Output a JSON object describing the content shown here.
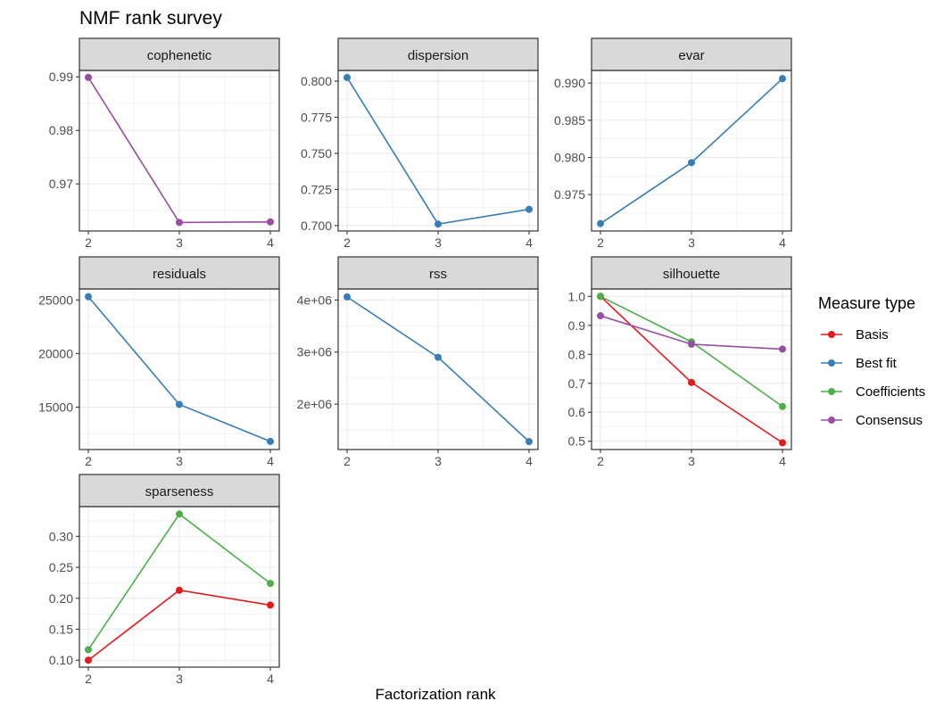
{
  "colors": {
    "Basis": "#E41A1C",
    "Best fit": "#377EB8",
    "Coefficients": "#4DAF4A",
    "Consensus": "#984EA3",
    "panel_border": "#333333",
    "strip_fill": "#D9D9D9",
    "grid": "#EBEBEB",
    "text": "#4D4D4D"
  },
  "chart_data": {
    "type": "line",
    "title": "NMF rank survey",
    "xlabel": "Factorization rank",
    "ylabel": "",
    "legend_title": "Measure type",
    "legend_position": "right",
    "grid": true,
    "legend": [
      "Basis",
      "Best fit",
      "Coefficients",
      "Consensus"
    ],
    "x": [
      2,
      3,
      4
    ],
    "x_ticks": [
      "2",
      "3",
      "4"
    ],
    "panels": [
      {
        "name": "cophenetic",
        "ylim": [
          0.9612,
          0.9912
        ],
        "y_ticks": [
          0.97,
          0.98,
          0.99
        ],
        "y_tick_labels": [
          "0.97",
          "0.98",
          "0.99"
        ],
        "series": [
          {
            "name": "Consensus",
            "values": [
              0.9899,
              0.9628,
              0.9629
            ]
          }
        ]
      },
      {
        "name": "dispersion",
        "ylim": [
          0.6962,
          0.8074
        ],
        "y_ticks": [
          0.7,
          0.725,
          0.75,
          0.775,
          0.8
        ],
        "y_tick_labels": [
          "0.700",
          "0.725",
          "0.750",
          "0.775",
          "0.800"
        ],
        "series": [
          {
            "name": "Best fit",
            "values": [
              0.8025,
              0.701,
              0.7112
            ]
          }
        ]
      },
      {
        "name": "evar",
        "ylim": [
          0.9701,
          0.9917
        ],
        "y_ticks": [
          0.975,
          0.98,
          0.985,
          0.99
        ],
        "y_tick_labels": [
          "0.975",
          "0.980",
          "0.985",
          "0.990"
        ],
        "series": [
          {
            "name": "Best fit",
            "values": [
              0.9711,
              0.9793,
              0.9906
            ]
          }
        ]
      },
      {
        "name": "residuals",
        "ylim": [
          11045,
          26020
        ],
        "y_ticks": [
          15000,
          20000,
          25000
        ],
        "y_tick_labels": [
          "15000",
          "20000",
          "25000"
        ],
        "series": [
          {
            "name": "Best fit",
            "values": [
              25300,
              15250,
              11800
            ]
          }
        ]
      },
      {
        "name": "rss",
        "ylim": [
          1128000,
          4212000
        ],
        "y_ticks": [
          2000000,
          3000000,
          4000000
        ],
        "y_tick_labels": [
          "2e+06",
          "3e+06",
          "4e+06"
        ],
        "series": [
          {
            "name": "Best fit",
            "values": [
              4060000,
              2900000,
              1280000
            ]
          }
        ]
      },
      {
        "name": "silhouette",
        "ylim": [
          0.4715,
          1.0255
        ],
        "y_ticks": [
          0.5,
          0.6,
          0.7,
          0.8,
          0.9,
          1.0
        ],
        "y_tick_labels": [
          "0.5",
          "0.6",
          "0.7",
          "0.8",
          "0.9",
          "1.0"
        ],
        "series": [
          {
            "name": "Basis",
            "values": [
              1.0,
              0.703,
              0.495
            ]
          },
          {
            "name": "Coefficients",
            "values": [
              1.0,
              0.843,
              0.62
            ]
          },
          {
            "name": "Consensus",
            "values": [
              0.933,
              0.835,
              0.818
            ]
          }
        ]
      },
      {
        "name": "sparseness",
        "ylim": [
          0.0888,
          0.348
        ],
        "y_ticks": [
          0.1,
          0.15,
          0.2,
          0.25,
          0.3
        ],
        "y_tick_labels": [
          "0.10",
          "0.15",
          "0.20",
          "0.25",
          "0.30"
        ],
        "series": [
          {
            "name": "Basis",
            "values": [
              0.1,
              0.213,
              0.189
            ]
          },
          {
            "name": "Coefficients",
            "values": [
              0.117,
              0.336,
              0.224
            ]
          }
        ]
      }
    ]
  }
}
